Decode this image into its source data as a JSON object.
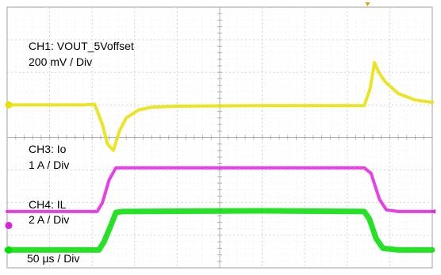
{
  "chart_data": {
    "type": "line",
    "title": "",
    "xlabel": "",
    "ylabel": "",
    "grid": true,
    "x_divisions": 10,
    "y_divisions": 8,
    "time_scale_label": "50 µs / Div",
    "xlim": [
      0,
      500
    ],
    "x_unit": "µs",
    "channels": [
      {
        "id": "CH1",
        "label": "CH1: VOUT_5Voffset",
        "scale_label": "200 mV / Div",
        "color": "#e8e000",
        "marker_color": "#e8e000",
        "ground_div": 5.0,
        "points": [
          [
            0,
            5.0
          ],
          [
            90,
            5.0
          ],
          [
            103,
            5.02
          ],
          [
            112,
            4.4
          ],
          [
            118,
            3.8
          ],
          [
            125,
            3.6
          ],
          [
            132,
            4.2
          ],
          [
            140,
            4.6
          ],
          [
            155,
            4.85
          ],
          [
            170,
            4.93
          ],
          [
            200,
            4.96
          ],
          [
            300,
            4.98
          ],
          [
            420,
            4.98
          ],
          [
            427,
            5.5
          ],
          [
            432,
            6.3
          ],
          [
            437,
            6.0
          ],
          [
            445,
            5.7
          ],
          [
            460,
            5.35
          ],
          [
            480,
            5.15
          ],
          [
            500,
            5.08
          ]
        ]
      },
      {
        "id": "CH3",
        "label": "CH3: Io",
        "scale_label": "1 A  / Div",
        "color": "#e020e0",
        "marker_color": "#e020e0",
        "ground_div": 1.3,
        "points": [
          [
            0,
            1.73
          ],
          [
            106,
            1.73
          ],
          [
            112,
            2.0
          ],
          [
            120,
            2.7
          ],
          [
            128,
            3.07
          ],
          [
            200,
            3.07
          ],
          [
            420,
            3.07
          ],
          [
            428,
            2.9
          ],
          [
            438,
            2.1
          ],
          [
            446,
            1.78
          ],
          [
            460,
            1.73
          ],
          [
            500,
            1.73
          ]
        ]
      },
      {
        "id": "CH4",
        "label": "CH4: IL",
        "scale_label": "2 A / Div",
        "color": "#00dd00",
        "marker_color": "#00dd00",
        "ground_div": 0.55,
        "points": [
          [
            0,
            0.55
          ],
          [
            108,
            0.55
          ],
          [
            114,
            0.8
          ],
          [
            122,
            1.3
          ],
          [
            128,
            1.7
          ],
          [
            135,
            1.73
          ],
          [
            300,
            1.75
          ],
          [
            420,
            1.73
          ],
          [
            426,
            1.5
          ],
          [
            434,
            0.9
          ],
          [
            442,
            0.6
          ],
          [
            460,
            0.55
          ],
          [
            500,
            0.55
          ]
        ]
      }
    ]
  }
}
